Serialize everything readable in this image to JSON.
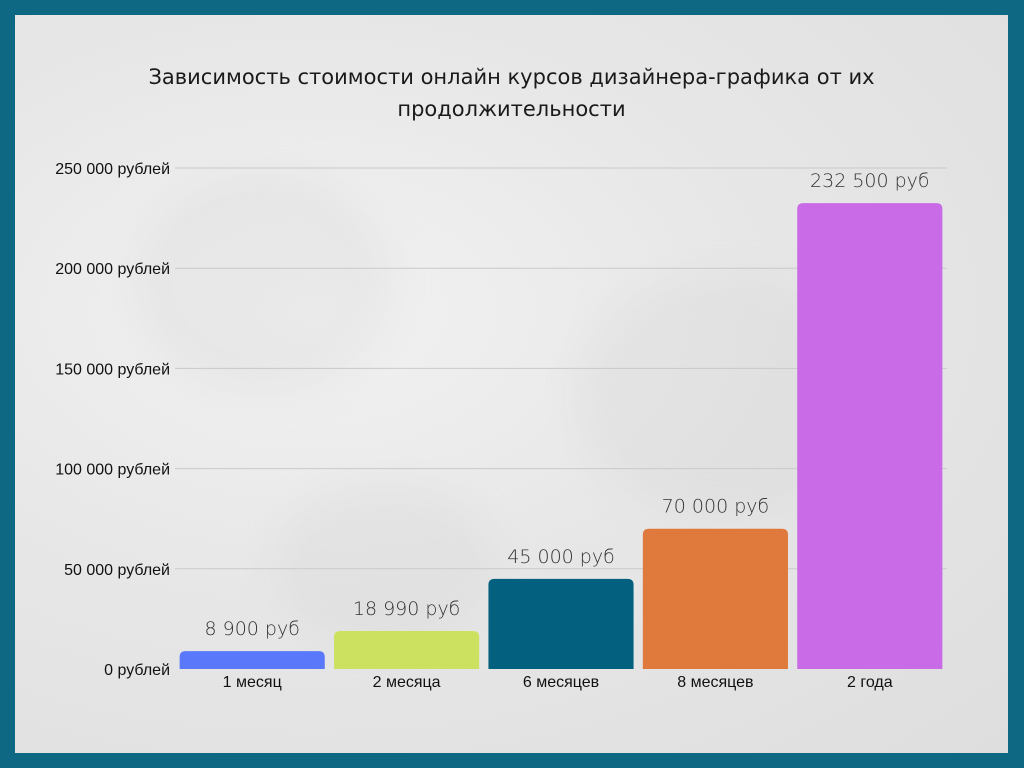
{
  "chart_data": {
    "type": "bar",
    "title": "Зависимость стоимости онлайн курсов дизайнера-графика от их продолжительности",
    "xlabel": "",
    "ylabel": "",
    "categories": [
      "1 месяц",
      "2 месяца",
      "6 месяцев",
      "8 месяцев",
      "2 года"
    ],
    "values": [
      8900,
      18990,
      45000,
      70000,
      232500
    ],
    "data_labels": [
      "8 900 руб",
      "18 990 руб",
      "45 000 руб",
      "70 000 руб",
      "232 500 руб"
    ],
    "colors": [
      "#5a78fa",
      "#cde160",
      "#04607f",
      "#e07a3c",
      "#c96be6"
    ],
    "ylim": [
      0,
      250000
    ],
    "yticks": [
      0,
      50000,
      100000,
      150000,
      200000,
      250000
    ],
    "ytick_labels": [
      "0 рублей",
      "50 000 рублей",
      "100 000 рублей",
      "150 000 рублей",
      "200 000 рублей",
      "250 000 рублей"
    ],
    "grid": true,
    "legend": "none"
  }
}
